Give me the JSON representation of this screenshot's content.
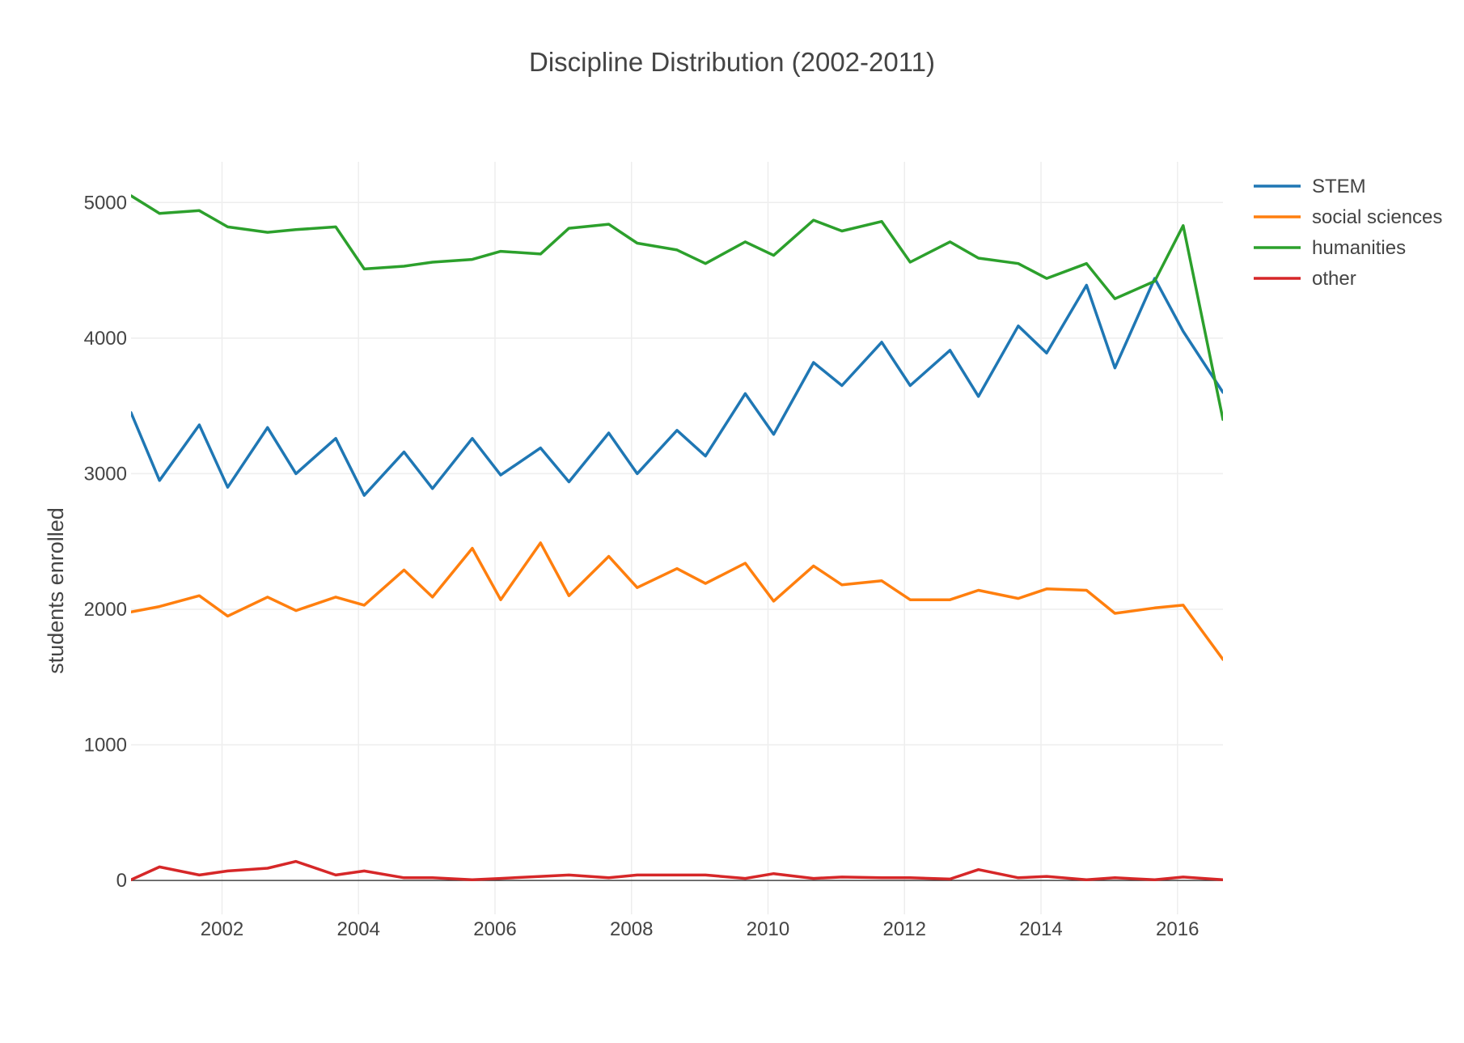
{
  "chart_data": {
    "type": "line",
    "title": "Discipline Distribution (2002-2011)",
    "xlabel": "",
    "ylabel": "students enrolled",
    "xlim": [
      "2000-09",
      "2016-09"
    ],
    "ylim": [
      -250,
      5300
    ],
    "xticks": [
      "2002",
      "2004",
      "2006",
      "2008",
      "2010",
      "2012",
      "2014",
      "2016"
    ],
    "yticks": [
      "0",
      "1000",
      "2000",
      "3000",
      "4000",
      "5000"
    ],
    "grid": true,
    "legend_position": "top-right",
    "x": [
      "2000-09",
      "2001-02",
      "2001-09",
      "2002-02",
      "2002-09",
      "2003-02",
      "2003-09",
      "2004-02",
      "2004-09",
      "2005-02",
      "2005-09",
      "2006-02",
      "2006-09",
      "2007-02",
      "2007-09",
      "2008-02",
      "2008-09",
      "2009-02",
      "2009-09",
      "2010-02",
      "2010-09",
      "2011-02",
      "2011-09",
      "2012-02",
      "2012-09",
      "2013-02",
      "2013-09",
      "2014-02",
      "2014-09",
      "2015-02",
      "2015-09",
      "2016-02",
      "2016-09"
    ],
    "series": [
      {
        "name": "STEM",
        "color": "#1f77b4",
        "values": [
          3450,
          2950,
          3360,
          2900,
          3340,
          3000,
          3260,
          2840,
          3160,
          2890,
          3260,
          2990,
          3190,
          2940,
          3300,
          3000,
          3320,
          3130,
          3590,
          3290,
          3820,
          3650,
          3970,
          3650,
          3910,
          3570,
          4090,
          3890,
          4390,
          3780,
          4440,
          4050,
          3600
        ]
      },
      {
        "name": "social sciences",
        "color": "#ff7f0e",
        "values": [
          1980,
          2020,
          2100,
          1950,
          2090,
          1990,
          2090,
          2030,
          2290,
          2090,
          2450,
          2070,
          2490,
          2100,
          2390,
          2160,
          2300,
          2190,
          2340,
          2060,
          2320,
          2180,
          2210,
          2070,
          2070,
          2140,
          2080,
          2150,
          2140,
          1970,
          2010,
          2030,
          1630
        ]
      },
      {
        "name": "humanities",
        "color": "#2ca02c",
        "values": [
          5050,
          4920,
          4940,
          4820,
          4780,
          4800,
          4820,
          4510,
          4530,
          4560,
          4580,
          4640,
          4620,
          4810,
          4840,
          4700,
          4650,
          4550,
          4710,
          4610,
          4870,
          4790,
          4860,
          4560,
          4710,
          4590,
          4550,
          4440,
          4550,
          4290,
          4420,
          4830,
          3400
        ]
      },
      {
        "name": "other",
        "color": "#d62728",
        "values": [
          5,
          100,
          40,
          70,
          90,
          140,
          40,
          70,
          20,
          20,
          5,
          15,
          30,
          40,
          20,
          40,
          40,
          40,
          15,
          50,
          15,
          25,
          20,
          20,
          10,
          80,
          20,
          30,
          5,
          20,
          5,
          25,
          5
        ]
      }
    ]
  }
}
